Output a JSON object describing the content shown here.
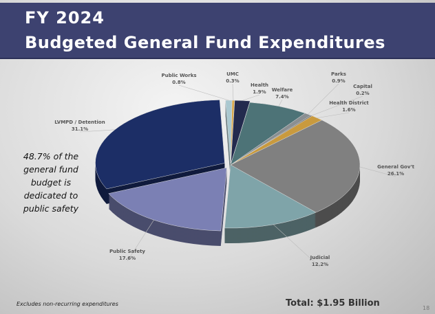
{
  "slide": {
    "title_line1": "FY 2024",
    "title_line2": "Budgeted General Fund Expenditures",
    "callout": "48.7% of the general fund budget is dedicated to public safety",
    "footnote": "Excludes non-recurring expenditures",
    "total": "Total: $1.95 Billion",
    "page_number": "18"
  },
  "chart_data": {
    "type": "pie",
    "title": "Budgeted General Fund Expenditures",
    "unit": "percent",
    "slices": [
      {
        "label": "Health",
        "value": 1.9,
        "text": "1.9%",
        "color": "#232a4e"
      },
      {
        "label": "Welfare",
        "value": 7.4,
        "text": "7.4%",
        "color": "#4d7377"
      },
      {
        "label": "Parks",
        "value": 0.9,
        "text": "0.9%",
        "color": "#8a8f92"
      },
      {
        "label": "Capital",
        "value": 0.2,
        "text": "0.2%",
        "color": "#6c6c6c"
      },
      {
        "label": "Health District",
        "value": 1.6,
        "text": "1.6%",
        "color": "#c99a3e"
      },
      {
        "label": "General Gov't",
        "value": 26.1,
        "text": "26.1%",
        "color": "#808080"
      },
      {
        "label": "Judicial",
        "value": 12.2,
        "text": "12.2%",
        "color": "#7fa4a9"
      },
      {
        "label": "Public Safety",
        "value": 17.6,
        "text": "17.6%",
        "color": "#7b80b4"
      },
      {
        "label": "LVMPD / Detention",
        "value": 31.1,
        "text": "31.1%",
        "color": "#1c2e66"
      },
      {
        "label": "Public Works",
        "value": 0.8,
        "text": "0.8%",
        "color": "#aac8d0"
      },
      {
        "label": "UMC",
        "value": 0.3,
        "text": "0.3%",
        "color": "#d9a84a"
      }
    ]
  }
}
